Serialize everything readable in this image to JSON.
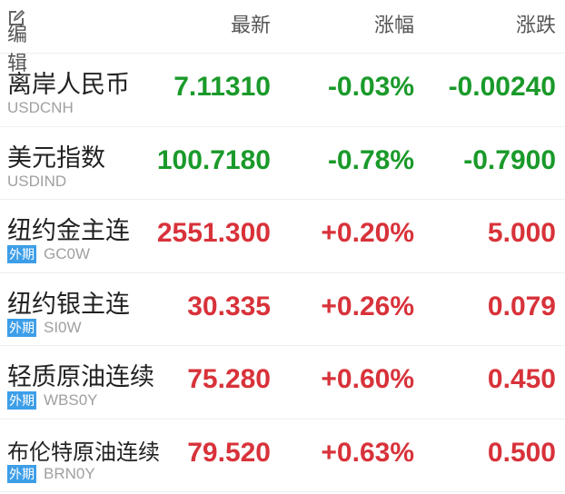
{
  "header": {
    "edit_label": "编辑",
    "edit_icon": "edit-icon",
    "last_label": "最新",
    "pct_label": "涨幅",
    "chg_label": "涨跌"
  },
  "colors": {
    "up": "#d8323a",
    "down": "#1a9a2a",
    "badge": "#3d9ee8"
  },
  "rows": [
    {
      "name": "离岸人民币",
      "code": "USDCNH",
      "badge": "",
      "last": "7.11310",
      "pct": "-0.03%",
      "chg": "-0.00240",
      "dir": "down"
    },
    {
      "name": "美元指数",
      "code": "USDIND",
      "badge": "",
      "last": "100.7180",
      "pct": "-0.78%",
      "chg": "-0.7900",
      "dir": "down"
    },
    {
      "name": "纽约金主连",
      "code": "GC0W",
      "badge": "外期",
      "last": "2551.300",
      "pct": "+0.20%",
      "chg": "5.000",
      "dir": "up"
    },
    {
      "name": "纽约银主连",
      "code": "SI0W",
      "badge": "外期",
      "last": "30.335",
      "pct": "+0.26%",
      "chg": "0.079",
      "dir": "up"
    },
    {
      "name": "轻质原油连续",
      "code": "WBS0Y",
      "badge": "外期",
      "last": "75.280",
      "pct": "+0.60%",
      "chg": "0.450",
      "dir": "up"
    },
    {
      "name": "布伦特原油连续",
      "code": "BRN0Y",
      "badge": "外期",
      "last": "79.520",
      "pct": "+0.63%",
      "chg": "0.500",
      "dir": "up"
    }
  ]
}
